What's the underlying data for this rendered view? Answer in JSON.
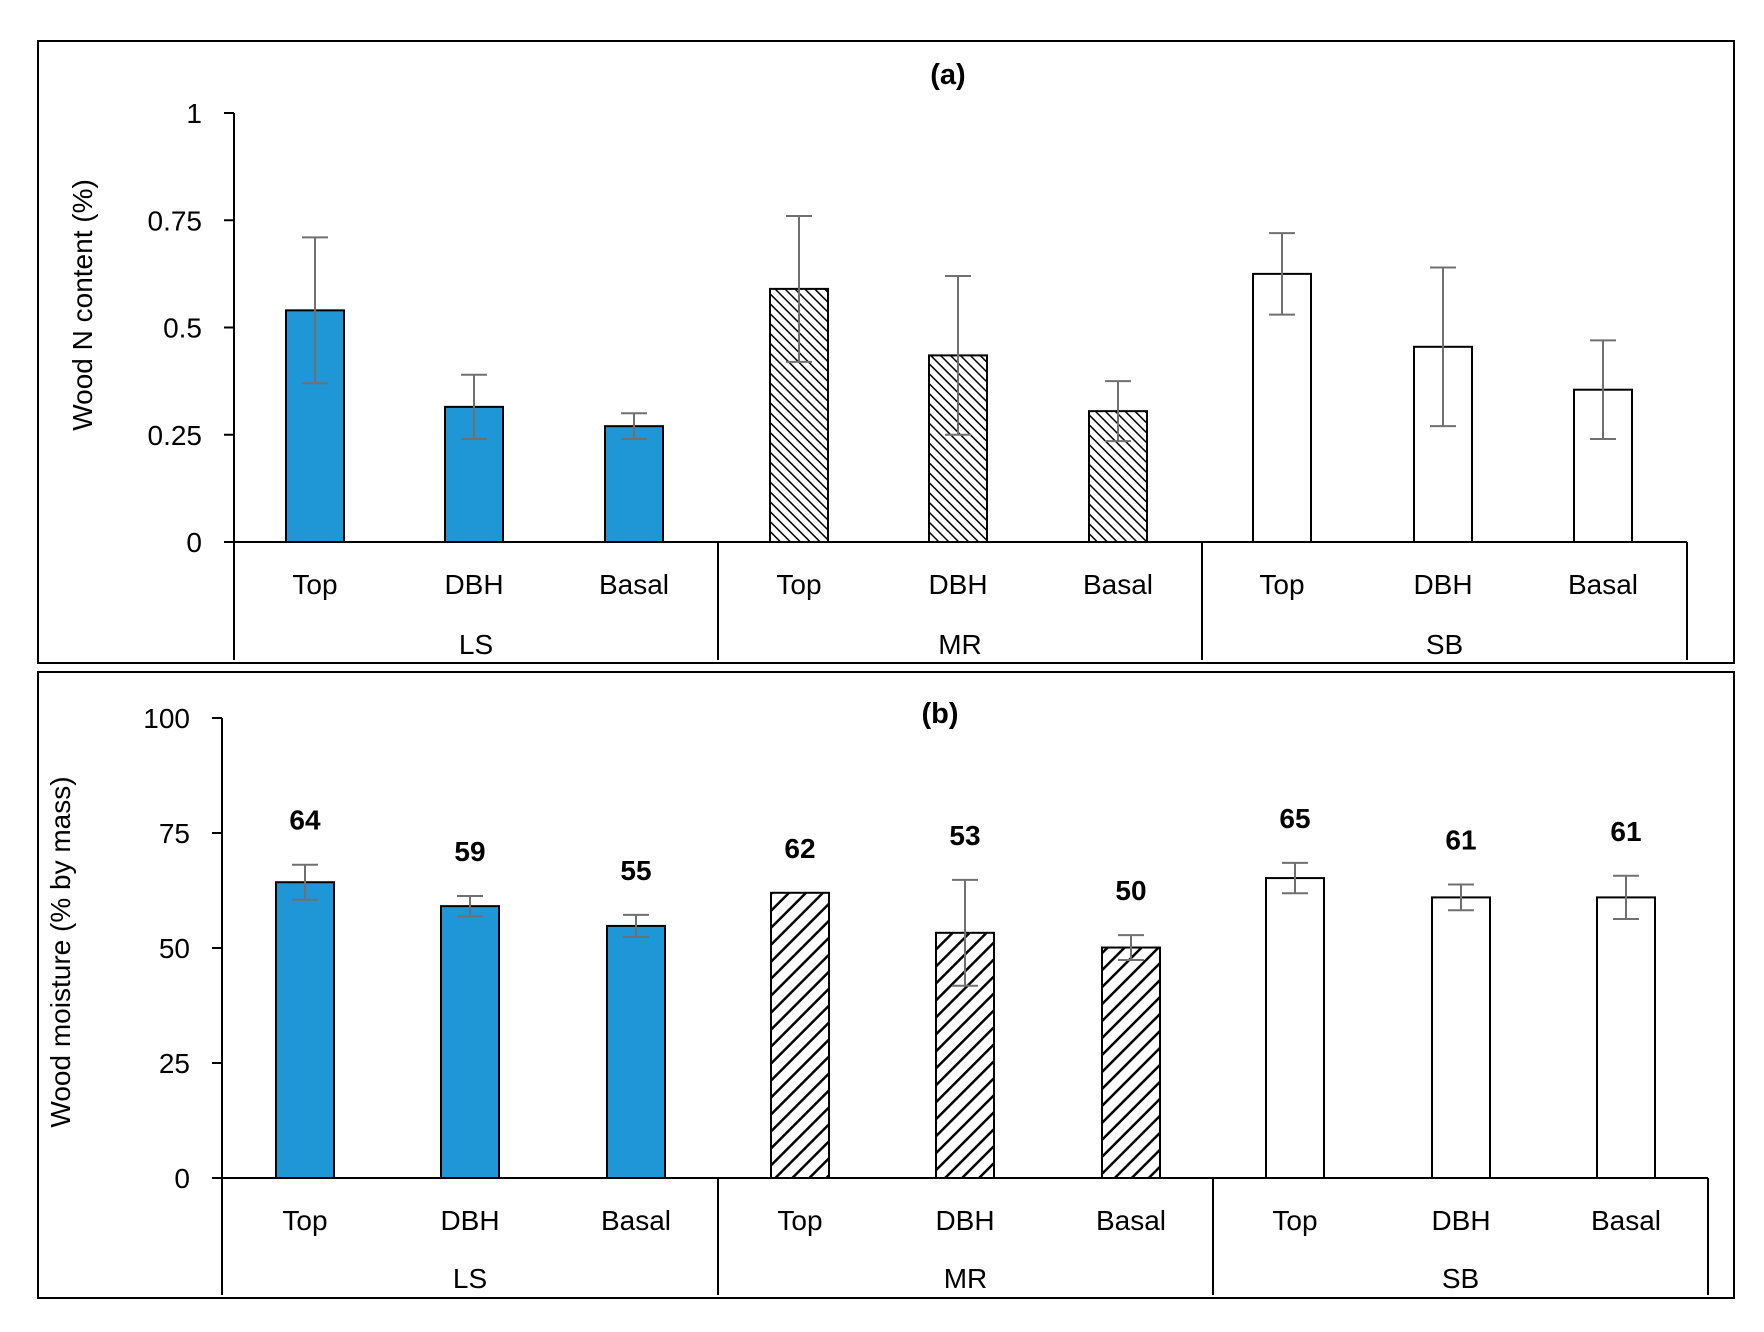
{
  "colors": {
    "ls_fill": "#1f97d6",
    "bar_stroke": "#000000",
    "error_bar": "#707070",
    "frame": "#000000"
  },
  "patterns": {
    "LS": "solid",
    "MR": "diagonal-hatch",
    "SB": "white"
  },
  "chart_data": [
    {
      "type": "bar",
      "title": "(a)",
      "ylabel": "Wood N content (%)",
      "xlabel": "",
      "ylim": [
        0,
        1
      ],
      "yticks": [
        0,
        0.25,
        0.5,
        0.75,
        1
      ],
      "ytick_labels": [
        "0",
        "0.25",
        "0.5",
        "0.75",
        "1"
      ],
      "groups": [
        "LS",
        "MR",
        "SB"
      ],
      "categories": [
        "Top",
        "DBH",
        "Basal"
      ],
      "series": [
        {
          "name": "LS",
          "values": [
            0.54,
            0.315,
            0.27
          ],
          "errors": [
            0.17,
            0.075,
            0.03
          ]
        },
        {
          "name": "MR",
          "values": [
            0.59,
            0.435,
            0.305
          ],
          "errors": [
            0.17,
            0.185,
            0.07
          ]
        },
        {
          "name": "SB",
          "values": [
            0.625,
            0.455,
            0.355
          ],
          "errors": [
            0.095,
            0.185,
            0.115
          ]
        }
      ],
      "data_labels": null
    },
    {
      "type": "bar",
      "title": "(b)",
      "ylabel": "Wood moisture (% by mass)",
      "xlabel": "",
      "ylim": [
        0,
        100
      ],
      "yticks": [
        0,
        25,
        50,
        75,
        100
      ],
      "ytick_labels": [
        "0",
        "25",
        "50",
        "75",
        "100"
      ],
      "groups": [
        "LS",
        "MR",
        "SB"
      ],
      "categories": [
        "Top",
        "DBH",
        "Basal"
      ],
      "series": [
        {
          "name": "LS",
          "values": [
            64.3,
            59.1,
            54.8
          ],
          "errors": [
            3.8,
            2.2,
            2.4
          ]
        },
        {
          "name": "MR",
          "values": [
            62,
            53.3,
            50.1
          ],
          "errors": [
            0,
            11.5,
            2.7
          ]
        },
        {
          "name": "SB",
          "values": [
            65.2,
            61,
            61
          ],
          "errors": [
            3.3,
            2.8,
            4.7
          ]
        }
      ],
      "data_labels": [
        [
          "64",
          "59",
          "55"
        ],
        [
          "62",
          "53",
          "50"
        ],
        [
          "65",
          "61",
          "61"
        ]
      ]
    }
  ]
}
